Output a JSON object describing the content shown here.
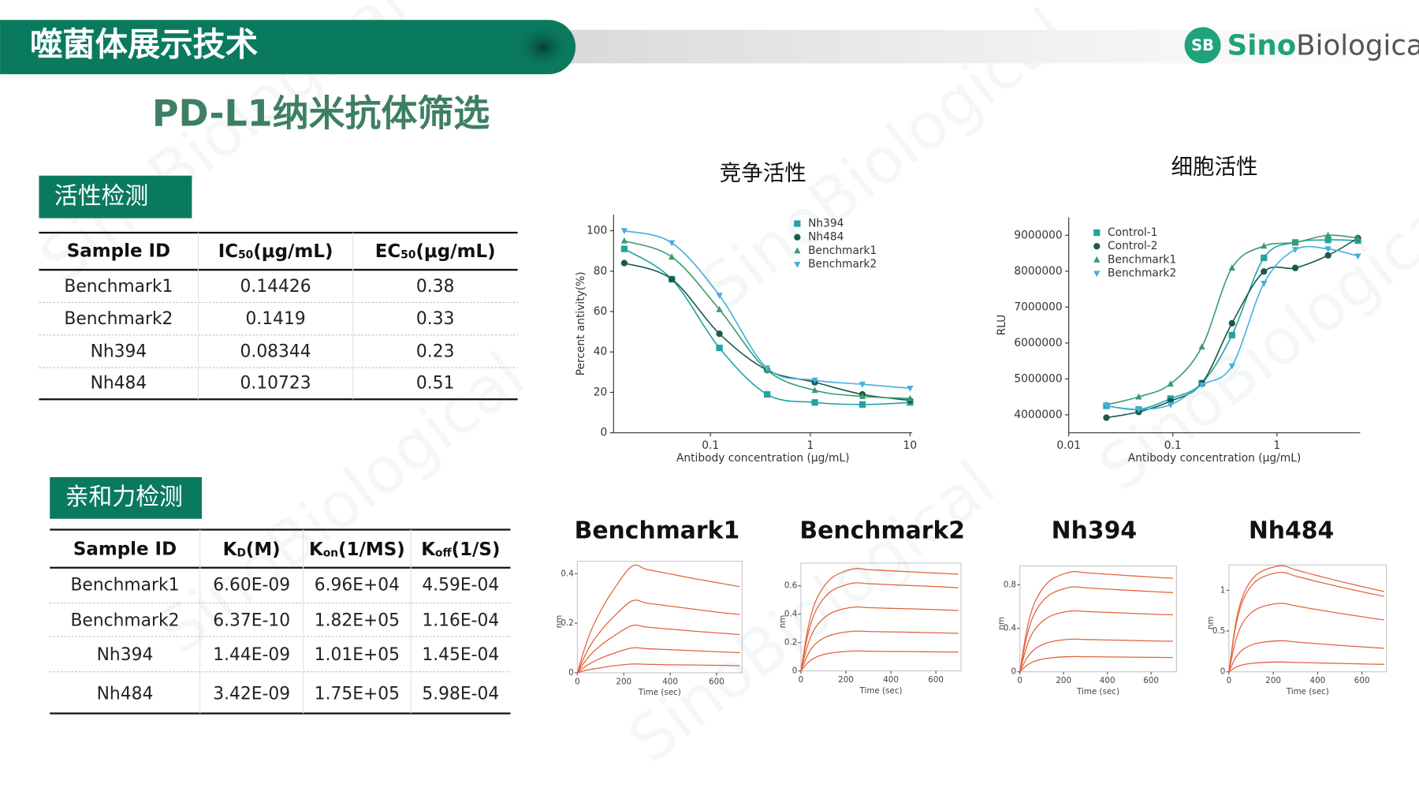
{
  "header": {
    "title": "噬菌体展示技术",
    "logo_mark": "SB",
    "logo_sino": "Sino",
    "logo_biological": "Biological"
  },
  "watermark": "SinoBiological",
  "page_title": "PD-L1纳米抗体筛选",
  "activity": {
    "label": "活性检测",
    "table": {
      "header": [
        "Sample ID",
        {
          "base": "IC",
          "sub": "50",
          "rest": "(μg/mL)"
        },
        {
          "base": "EC",
          "sub": "50",
          "rest": "(μg/mL)"
        }
      ],
      "rows": [
        [
          "Benchmark1",
          "0.14426",
          "0.38"
        ],
        [
          "Benchmark2",
          "0.1419",
          "0.33"
        ],
        [
          "Nh394",
          "0.08344",
          "0.23"
        ],
        [
          "Nh484",
          "0.10723",
          "0.51"
        ]
      ]
    }
  },
  "affinity": {
    "label": "亲和力检测",
    "table": {
      "header": [
        "Sample ID",
        {
          "base": "K",
          "sub": "D",
          "rest": "(M)"
        },
        {
          "base": "K",
          "sub": "on",
          "rest": "(1/MS)"
        },
        {
          "base": "K",
          "sub": "off",
          "rest": "(1/S)"
        }
      ],
      "rows": [
        [
          "Benchmark1",
          "6.60E-09",
          "6.96E+04",
          "4.59E-04"
        ],
        [
          "Benchmark2",
          "6.37E-10",
          "1.82E+05",
          "1.16E-04"
        ],
        [
          "Nh394",
          "1.44E-09",
          "1.01E+05",
          "1.45E-04"
        ],
        [
          "Nh484",
          "3.42E-09",
          "1.75E+05",
          "5.98E-04"
        ]
      ]
    }
  },
  "competition_chart": {
    "type": "scatter",
    "title": "竞争活性",
    "x_label": "Antibody concentration (μg/mL)",
    "y_label": "Percent antivity(%)",
    "x_scale": "log",
    "xlim": [
      0.0107,
      10.5
    ],
    "xticks": [
      0.1,
      1,
      10
    ],
    "ylim": [
      0,
      108
    ],
    "yticks": [
      0,
      20,
      40,
      60,
      80,
      100
    ],
    "x": [
      0.0137,
      0.041,
      0.123,
      0.37,
      1.11,
      3.33,
      10
    ],
    "series": [
      {
        "name": "Nh394",
        "color": "#21a3a3",
        "marker": "square",
        "values": [
          91,
          76,
          42,
          19,
          15,
          14,
          15
        ]
      },
      {
        "name": "Nh484",
        "color": "#1b5a48",
        "marker": "circle",
        "values": [
          84,
          76,
          49,
          31,
          25,
          19,
          16
        ]
      },
      {
        "name": "Benchmark1",
        "color": "#3c9a6c",
        "marker": "triangle",
        "values": [
          95,
          87,
          61,
          31,
          21,
          18,
          17
        ]
      },
      {
        "name": "Benchmark2",
        "color": "#45aee0",
        "marker": "triangle-down",
        "values": [
          100,
          94,
          68,
          32,
          26,
          24,
          22
        ]
      }
    ]
  },
  "cell_chart": {
    "type": "scatter",
    "title": "细胞活性",
    "x_label": "Antibody concentration (μg/mL)",
    "y_label": "RLU",
    "x_scale": "log",
    "xlim": [
      0.01,
      6.3
    ],
    "xticks": [
      0.01,
      0.1,
      1
    ],
    "ylim": [
      3500000,
      9500000
    ],
    "yticks": [
      4000000,
      5000000,
      6000000,
      7000000,
      8000000,
      9000000
    ],
    "x": [
      0.023,
      0.047,
      0.095,
      0.19,
      0.37,
      0.75,
      1.5,
      3.1,
      6.0
    ],
    "series": [
      {
        "name": "Control-1",
        "color": "#21a3a3",
        "marker": "square",
        "values": [
          4250000,
          4150000,
          4450000,
          4880000,
          6220000,
          8370000,
          8800000,
          8870000,
          8850000
        ]
      },
      {
        "name": "Control-2",
        "color": "#1b5a48",
        "marker": "circle",
        "values": [
          3920000,
          4080000,
          4380000,
          4880000,
          6550000,
          7990000,
          8090000,
          8440000,
          8920000
        ]
      },
      {
        "name": "Benchmark1",
        "color": "#3c9a6c",
        "marker": "triangle",
        "values": [
          4280000,
          4500000,
          4860000,
          5890000,
          8090000,
          8700000,
          8800000,
          9000000,
          8920000
        ]
      },
      {
        "name": "Benchmark2",
        "color": "#45aee0",
        "marker": "triangle-down",
        "values": [
          4250000,
          4150000,
          4280000,
          4830000,
          5360000,
          7660000,
          8600000,
          8620000,
          8420000
        ]
      }
    ]
  },
  "sensorgrams": [
    {
      "type": "line",
      "title": "Benchmark1",
      "x_label": "Time (sec)",
      "y_label": "nm",
      "xlim": [
        0,
        710
      ],
      "xticks": [
        0,
        200,
        400,
        600
      ],
      "ylim": [
        0,
        0.45
      ],
      "yticks": [
        0,
        0.2,
        0.4
      ],
      "x": [
        0,
        30,
        60,
        100,
        150,
        235,
        300,
        400,
        500,
        600,
        700
      ],
      "series": [
        {
          "color": "#e2643c",
          "values": [
            0,
            0.095,
            0.172,
            0.249,
            0.327,
            0.43,
            0.417,
            0.399,
            0.381,
            0.364,
            0.348
          ]
        },
        {
          "color": "#e2643c",
          "values": [
            0,
            0.064,
            0.116,
            0.168,
            0.22,
            0.29,
            0.281,
            0.269,
            0.257,
            0.245,
            0.235
          ]
        },
        {
          "color": "#e2643c",
          "values": [
            0,
            0.042,
            0.076,
            0.11,
            0.144,
            0.19,
            0.184,
            0.176,
            0.168,
            0.161,
            0.154
          ]
        },
        {
          "color": "#e2643c",
          "values": [
            0,
            0.022,
            0.04,
            0.058,
            0.076,
            0.1,
            0.097,
            0.093,
            0.089,
            0.085,
            0.081
          ]
        },
        {
          "color": "#e2643c",
          "values": [
            0,
            0.008,
            0.014,
            0.02,
            0.027,
            0.035,
            0.034,
            0.032,
            0.031,
            0.03,
            0.028
          ]
        }
      ]
    },
    {
      "type": "line",
      "title": "Benchmark2",
      "x_label": "Time (sec)",
      "y_label": "nm",
      "xlim": [
        0,
        712
      ],
      "xticks": [
        0,
        200,
        400,
        600
      ],
      "ylim": [
        0,
        0.76
      ],
      "yticks": [
        0,
        0.2,
        0.4,
        0.6
      ],
      "x": [
        0,
        30,
        60,
        100,
        150,
        235,
        300,
        400,
        500,
        600,
        700
      ],
      "series": [
        {
          "color": "#e2643c",
          "values": [
            0,
            0.288,
            0.468,
            0.59,
            0.67,
            0.72,
            0.714,
            0.706,
            0.698,
            0.69,
            0.682
          ]
        },
        {
          "color": "#e2643c",
          "values": [
            0,
            0.248,
            0.403,
            0.508,
            0.577,
            0.62,
            0.615,
            0.608,
            0.601,
            0.595,
            0.587
          ]
        },
        {
          "color": "#e2643c",
          "values": [
            0,
            0.18,
            0.293,
            0.369,
            0.419,
            0.45,
            0.446,
            0.441,
            0.437,
            0.432,
            0.426
          ]
        },
        {
          "color": "#e2643c",
          "values": [
            0,
            0.112,
            0.182,
            0.23,
            0.26,
            0.28,
            0.278,
            0.275,
            0.272,
            0.269,
            0.265
          ]
        },
        {
          "color": "#e2643c",
          "values": [
            0,
            0.056,
            0.091,
            0.115,
            0.13,
            0.14,
            0.139,
            0.137,
            0.136,
            0.134,
            0.133
          ]
        }
      ]
    },
    {
      "type": "line",
      "title": "Nh394",
      "x_label": "Time (sec)",
      "y_label": "nm",
      "xlim": [
        0,
        716
      ],
      "xticks": [
        0,
        200,
        400,
        600
      ],
      "ylim": [
        0,
        0.975
      ],
      "yticks": [
        0,
        0.4,
        0.8
      ],
      "x": [
        0,
        30,
        60,
        100,
        150,
        235,
        300,
        400,
        500,
        600,
        700
      ],
      "series": [
        {
          "color": "#e2643c",
          "values": [
            0,
            0.368,
            0.598,
            0.754,
            0.856,
            0.92,
            0.912,
            0.898,
            0.885,
            0.872,
            0.86
          ]
        },
        {
          "color": "#e2643c",
          "values": [
            0,
            0.312,
            0.507,
            0.64,
            0.725,
            0.78,
            0.773,
            0.761,
            0.75,
            0.739,
            0.729
          ]
        },
        {
          "color": "#e2643c",
          "values": [
            0,
            0.224,
            0.364,
            0.459,
            0.521,
            0.56,
            0.555,
            0.547,
            0.539,
            0.531,
            0.524
          ]
        },
        {
          "color": "#e2643c",
          "values": [
            0,
            0.12,
            0.195,
            0.246,
            0.279,
            0.3,
            0.297,
            0.293,
            0.289,
            0.284,
            0.281
          ]
        },
        {
          "color": "#e2643c",
          "values": [
            0,
            0.056,
            0.091,
            0.115,
            0.13,
            0.14,
            0.139,
            0.137,
            0.135,
            0.133,
            0.131
          ]
        }
      ]
    },
    {
      "type": "line",
      "title": "Nh484",
      "x_label": "Time (sec)",
      "y_label": "nm",
      "xlim": [
        0,
        710
      ],
      "xticks": [
        0,
        200,
        400,
        600
      ],
      "ylim": [
        0,
        1.31
      ],
      "yticks": [
        0,
        0.5,
        1
      ],
      "x": [
        0,
        30,
        60,
        100,
        150,
        235,
        300,
        400,
        500,
        600,
        700
      ],
      "series": [
        {
          "color": "#e2643c",
          "values": [
            0,
            0.585,
            0.91,
            1.118,
            1.235,
            1.3,
            1.251,
            1.178,
            1.109,
            1.045,
            0.984
          ]
        },
        {
          "color": "#e2643c",
          "values": [
            0,
            0.549,
            0.854,
            1.049,
            1.159,
            1.22,
            1.174,
            1.105,
            1.041,
            0.981,
            0.924
          ]
        },
        {
          "color": "#e2643c",
          "values": [
            0,
            0.378,
            0.588,
            0.722,
            0.798,
            0.84,
            0.808,
            0.761,
            0.717,
            0.675,
            0.636
          ]
        },
        {
          "color": "#e2643c",
          "values": [
            0,
            0.171,
            0.266,
            0.327,
            0.361,
            0.38,
            0.366,
            0.344,
            0.324,
            0.306,
            0.288
          ]
        },
        {
          "color": "#e2643c",
          "values": [
            0,
            0.054,
            0.084,
            0.103,
            0.114,
            0.12,
            0.115,
            0.109,
            0.102,
            0.096,
            0.091
          ]
        }
      ]
    }
  ]
}
